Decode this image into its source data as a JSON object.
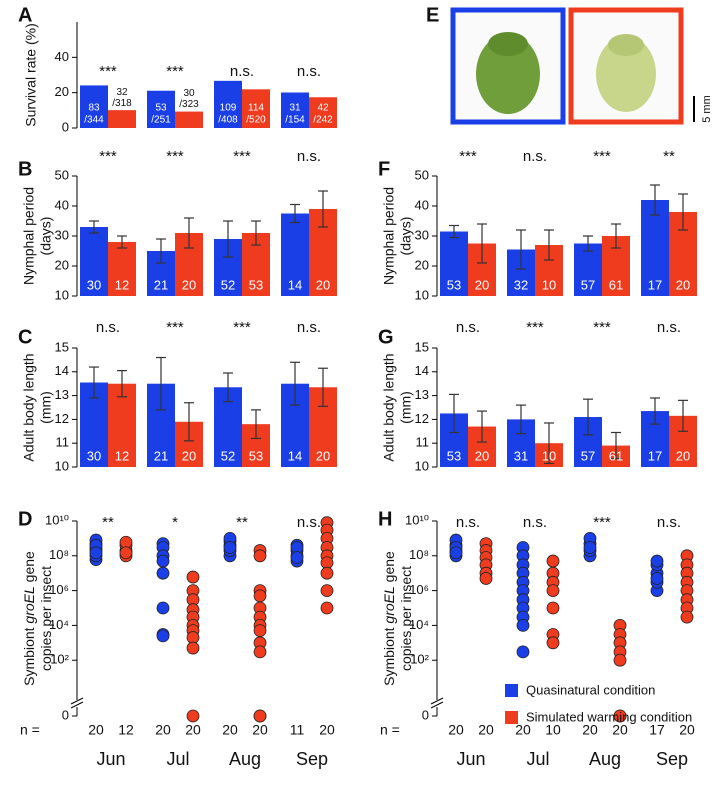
{
  "chart_data": [
    {
      "type": "bar",
      "panel_label": "A",
      "ylabel": [
        "Survival rate (%)"
      ],
      "ylim": [
        0,
        60
      ],
      "yticks": [
        0,
        20,
        40
      ],
      "significance": [
        "***",
        "***",
        "n.s.",
        "n.s."
      ],
      "series": [
        {
          "color": "#1b3fe6",
          "values": [
            24.1,
            21.1,
            26.7,
            20.1
          ],
          "numerators": [
            "83",
            "53",
            "109",
            "31"
          ],
          "denominators": [
            "/344",
            "/251",
            "/408",
            "/154"
          ]
        },
        {
          "color": "#ef3b1e",
          "values": [
            10.1,
            9.3,
            21.9,
            17.4
          ],
          "numerators": [
            "32",
            "30",
            "114",
            "42"
          ],
          "denominators": [
            "/318",
            "/323",
            "/520",
            "/242"
          ]
        }
      ]
    },
    {
      "type": "bar",
      "panel_label": "B",
      "ylabel": [
        "Nymphal period",
        "(days)"
      ],
      "ylim": [
        10,
        50
      ],
      "yticks": [
        10,
        20,
        30,
        40,
        50
      ],
      "significance": [
        "***",
        "***",
        "***",
        "n.s."
      ],
      "series": [
        {
          "color": "#1b3fe6",
          "values": [
            33,
            25,
            29,
            37.5
          ],
          "errors": [
            2,
            4,
            6,
            3
          ],
          "n_labels": [
            "30",
            "21",
            "52",
            "14"
          ]
        },
        {
          "color": "#ef3b1e",
          "values": [
            28,
            31,
            31,
            39
          ],
          "errors": [
            2,
            5,
            4,
            6
          ],
          "n_labels": [
            "12",
            "20",
            "53",
            "20"
          ]
        }
      ]
    },
    {
      "type": "bar",
      "panel_label": "C",
      "ylabel": [
        "Adult body length",
        "(mm)"
      ],
      "ylim": [
        10,
        15
      ],
      "yticks": [
        10,
        11,
        12,
        13,
        14,
        15
      ],
      "significance": [
        "n.s.",
        "***",
        "***",
        "n.s."
      ],
      "series": [
        {
          "color": "#1b3fe6",
          "values": [
            13.55,
            13.5,
            13.35,
            13.5
          ],
          "errors": [
            0.65,
            1.1,
            0.6,
            0.9
          ],
          "n_labels": [
            "30",
            "21",
            "52",
            "14"
          ]
        },
        {
          "color": "#ef3b1e",
          "values": [
            13.5,
            11.9,
            11.8,
            13.35
          ],
          "errors": [
            0.55,
            0.8,
            0.6,
            0.8
          ],
          "n_labels": [
            "12",
            "20",
            "53",
            "20"
          ]
        }
      ]
    },
    {
      "type": "scatter",
      "panel_label": "D",
      "ylabel": [
        [
          "Symbiont ",
          "groEL",
          " gene"
        ],
        [
          "copies per insect"
        ]
      ],
      "log": true,
      "ylim": [
        1,
        10000000000
      ],
      "yticks": [
        0,
        {
          "value": 100,
          "label": "10²"
        },
        {
          "value": 10000,
          "label": "10⁴"
        },
        {
          "value": 1000000,
          "label": "10⁶"
        },
        {
          "value": 100000000,
          "label": "10⁸"
        },
        {
          "value": 10000000000,
          "label": "10¹⁰"
        }
      ],
      "significance": [
        "**",
        "*",
        "**",
        "n.s."
      ],
      "categories": [
        "Jun",
        "Jul",
        "Aug",
        "Sep"
      ],
      "n_prefix": "n =",
      "series": [
        {
          "color": "#1b3fe6",
          "n_labels": [
            "20",
            "20",
            "20",
            "11"
          ],
          "values": [
            [
              60000000,
              100000000,
              200000000,
              300000000,
              500000000,
              800000000,
              400000000,
              150000000
            ],
            [
              500000000,
              300000000,
              100000000,
              50000000,
              10000000,
              100000,
              3000,
              2500
            ],
            [
              100000000,
              200000000,
              400000000,
              700000000,
              1000000000,
              300000000
            ],
            [
              50000000,
              100000000,
              200000000,
              400000000,
              300000000,
              80000000
            ]
          ]
        },
        {
          "color": "#ef3b1e",
          "n_labels": [
            "12",
            "20",
            "20",
            "20"
          ],
          "values": [
            [
              100000000,
              200000000,
              400000000,
              600000000,
              150000000
            ],
            [
              6000000,
              1000000,
              300000,
              80000,
              30000,
              10000,
              5000,
              2000,
              500,
              0
            ],
            [
              200000000,
              100000000,
              1000000,
              500000,
              100000,
              30000,
              10000,
              5000,
              1000,
              300,
              0,
              0
            ],
            [
              8000000000,
              3000000000,
              1000000000,
              300000000,
              100000000,
              40000000,
              10000000,
              1000000,
              100000
            ]
          ]
        }
      ]
    },
    {
      "type": "bar",
      "panel_label": "F",
      "ylabel": [
        "Nymphal period",
        "(days)"
      ],
      "ylim": [
        10,
        50
      ],
      "yticks": [
        10,
        20,
        30,
        40,
        50
      ],
      "significance": [
        "***",
        "n.s.",
        "***",
        "**"
      ],
      "series": [
        {
          "color": "#1b3fe6",
          "values": [
            31.5,
            25.5,
            27.5,
            42
          ],
          "errors": [
            2,
            6.5,
            2.5,
            5
          ],
          "n_labels": [
            "53",
            "32",
            "57",
            "17"
          ]
        },
        {
          "color": "#ef3b1e",
          "values": [
            27.5,
            27,
            30,
            38
          ],
          "errors": [
            6.5,
            5,
            4,
            6
          ],
          "n_labels": [
            "20",
            "10",
            "61",
            "20"
          ]
        }
      ]
    },
    {
      "type": "bar",
      "panel_label": "G",
      "ylabel": [
        "Adult body length",
        "(mm)"
      ],
      "ylim": [
        10,
        15
      ],
      "yticks": [
        10,
        11,
        12,
        13,
        14,
        15
      ],
      "significance": [
        "n.s.",
        "***",
        "***",
        "n.s."
      ],
      "series": [
        {
          "color": "#1b3fe6",
          "values": [
            12.25,
            12,
            12.1,
            12.35
          ],
          "errors": [
            0.8,
            0.6,
            0.75,
            0.55
          ],
          "n_labels": [
            "53",
            "31",
            "57",
            "17"
          ]
        },
        {
          "color": "#ef3b1e",
          "values": [
            11.7,
            11,
            10.9,
            12.15
          ],
          "errors": [
            0.65,
            0.85,
            0.55,
            0.65
          ],
          "n_labels": [
            "20",
            "10",
            "61",
            "20"
          ]
        }
      ]
    },
    {
      "type": "scatter",
      "panel_label": "H",
      "ylabel": [
        [
          "Symbiont ",
          "groEL",
          " gene"
        ],
        [
          "copies per insect"
        ]
      ],
      "log": true,
      "ylim": [
        1,
        10000000000
      ],
      "yticks": [
        0,
        {
          "value": 100,
          "label": "10²"
        },
        {
          "value": 10000,
          "label": "10⁴"
        },
        {
          "value": 1000000,
          "label": "10⁶"
        },
        {
          "value": 100000000,
          "label": "10⁸"
        },
        {
          "value": 10000000000,
          "label": "10¹⁰"
        }
      ],
      "significance": [
        "n.s.",
        "n.s.",
        "***",
        "n.s."
      ],
      "categories": [
        "Jun",
        "Jul",
        "Aug",
        "Sep"
      ],
      "n_prefix": "n =",
      "series": [
        {
          "name": "Quasinatural condition",
          "color": "#1b3fe6",
          "n_labels": [
            "20",
            "20",
            "20",
            "17"
          ],
          "values": [
            [
              100000000,
              200000000,
              400000000,
              800000000,
              300000000,
              150000000
            ],
            [
              300000000,
              100000000,
              30000000,
              10000000,
              3000000,
              1000000,
              300000,
              100000,
              30000,
              10000,
              300
            ],
            [
              100000000,
              200000000,
              500000000,
              1000000000,
              300000000
            ],
            [
              1000000,
              3000000,
              10000000,
              30000000,
              50000000,
              5000000
            ]
          ]
        },
        {
          "name": "Simulated warming condition",
          "color": "#ef3b1e",
          "n_labels": [
            "20",
            "10",
            "20",
            "20"
          ],
          "values": [
            [
              500000000,
              200000000,
              80000000,
              30000000,
              10000000,
              5000000
            ],
            [
              50000000,
              10000000,
              3000000,
              1000000,
              100000,
              3000,
              1000
            ],
            [
              10000,
              3000,
              1000,
              300,
              100,
              0,
              0
            ],
            [
              100000000,
              30000000,
              10000000,
              3000000,
              1000000,
              300000,
              100000,
              30000
            ]
          ]
        }
      ]
    }
  ],
  "photo": {
    "panel_label": "E",
    "scale_label": "5 mm"
  }
}
